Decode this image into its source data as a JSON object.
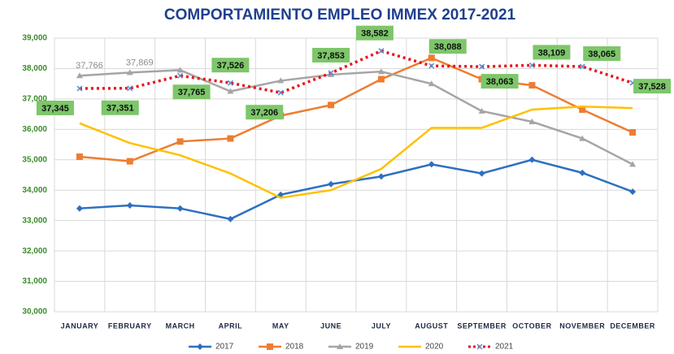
{
  "chart_data": {
    "type": "line",
    "title": "COMPORTAMIENTO  EMPLEO IMMEX 2017-2021",
    "categories": [
      "JANUARY",
      "FEBRUARY",
      "MARCH",
      "APRIL",
      "MAY",
      "JUNE",
      "JULY",
      "AUGUST",
      "SEPTEMBER",
      "OCTOBER",
      "NOVEMBER",
      "DECEMBER"
    ],
    "series": [
      {
        "name": "2017",
        "color": "#2e6fc0",
        "values": [
          33400,
          33500,
          33400,
          33050,
          33850,
          34200,
          34450,
          34850,
          34550,
          35000,
          34570,
          33950
        ]
      },
      {
        "name": "2018",
        "color": "#ed7d31",
        "values": [
          35100,
          34950,
          35600,
          35700,
          36450,
          36800,
          37650,
          38350,
          37650,
          37450,
          36650,
          35900
        ]
      },
      {
        "name": "2019",
        "color": "#a5a5a5",
        "values": [
          37766,
          37869,
          37950,
          37250,
          37600,
          37800,
          37900,
          37500,
          36600,
          36250,
          35700,
          34850
        ],
        "value_labels": [
          "37,766",
          "37,869",
          null,
          null,
          null,
          null,
          null,
          null,
          null,
          null,
          null,
          null
        ]
      },
      {
        "name": "2020",
        "color": "#ffc000",
        "values": [
          36200,
          35550,
          35150,
          34550,
          33750,
          34000,
          34700,
          36050,
          36050,
          36650,
          36750,
          36700
        ]
      },
      {
        "name": "2021",
        "color": "#e8141b",
        "values": [
          37345,
          37351,
          37765,
          37526,
          37206,
          37853,
          38582,
          38088,
          38063,
          38109,
          38065,
          37528
        ],
        "value_labels": [
          "37,345",
          "37,351",
          "37,765",
          "37,526",
          "37,206",
          "37,853",
          "38,582",
          "38,088",
          "38,063",
          "38,109",
          "38,065",
          "37,528"
        ]
      }
    ],
    "ylim": [
      30000,
      39000
    ],
    "yticks": [
      {
        "value": 30000,
        "label": "30,000"
      },
      {
        "value": 31000,
        "label": "31,000"
      },
      {
        "value": 32000,
        "label": "32,000"
      },
      {
        "value": 33000,
        "label": "33,000"
      },
      {
        "value": 34000,
        "label": "34,000"
      },
      {
        "value": 35000,
        "label": "35,000"
      },
      {
        "value": 36000,
        "label": "36,000"
      },
      {
        "value": 37000,
        "label": "37,000"
      },
      {
        "value": 38000,
        "label": "38,000"
      },
      {
        "value": 39000,
        "label": "39,000"
      }
    ],
    "grid": true,
    "legend": "bottom"
  }
}
